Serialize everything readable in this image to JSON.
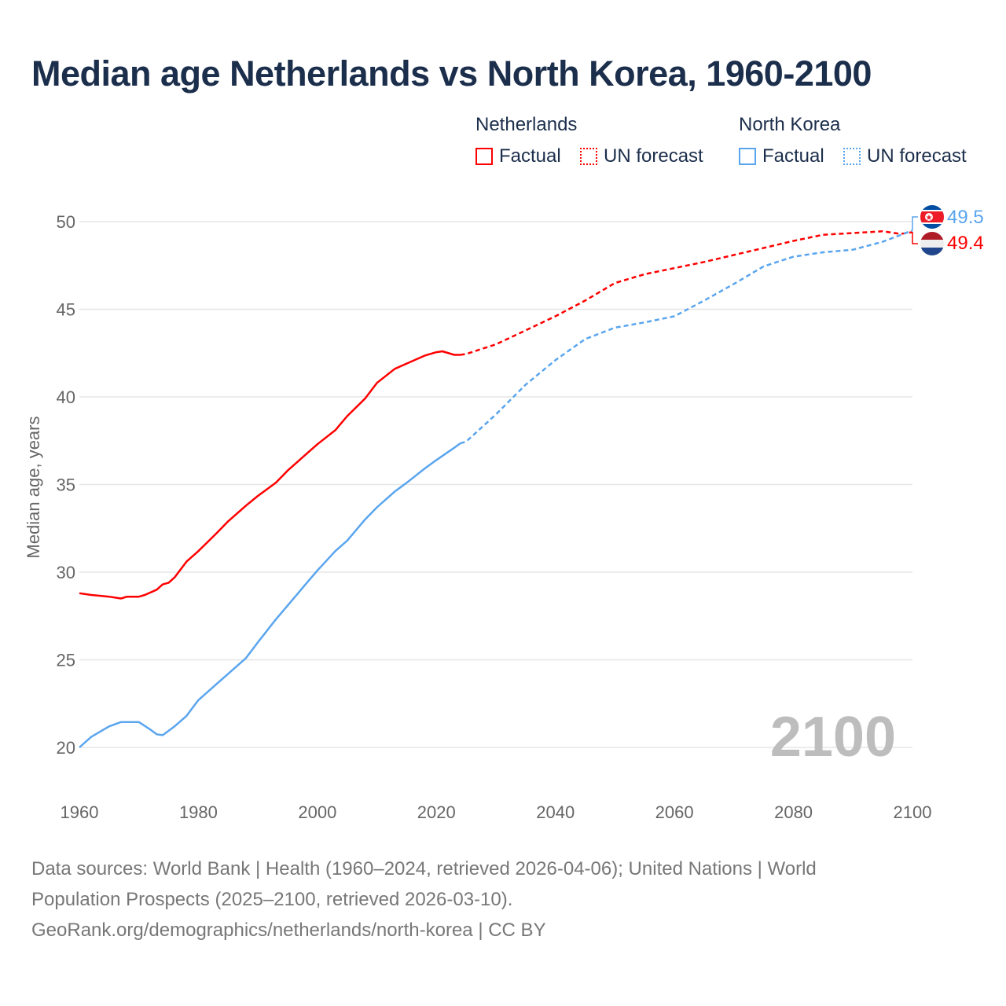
{
  "title": "Median age Netherlands vs North Korea, 1960-2100",
  "legend": {
    "groups": [
      {
        "name": "Netherlands",
        "color": "#ff0000",
        "factual": "Factual",
        "forecast": "UN forecast"
      },
      {
        "name": "North Korea",
        "color": "#5aa5ee",
        "factual": "Factual",
        "forecast": "UN forecast"
      }
    ]
  },
  "year_watermark": "2100",
  "end_labels": {
    "north_korea": "49.5",
    "netherlands": "49.4"
  },
  "footer": {
    "line1": "Data sources: World Bank | Health (1960–2024, retrieved 2026-04-06); United Nations | World",
    "line2": "Population Prospects (2025–2100, retrieved 2026-03-10).",
    "line3": "GeoRank.org/demographics/netherlands/north-korea | CC BY"
  },
  "chart_data": {
    "type": "line",
    "title": "Median age Netherlands vs North Korea, 1960-2100",
    "xlabel": "",
    "ylabel": "Median age, years",
    "xlim": [
      1960,
      2100
    ],
    "ylim": [
      20,
      50
    ],
    "xticks": [
      1960,
      1980,
      2000,
      2020,
      2040,
      2060,
      2080,
      2100
    ],
    "yticks": [
      20,
      25,
      30,
      35,
      40,
      45,
      50
    ],
    "grid": true,
    "legend_position": "top-right",
    "factual_until": 2024,
    "series": [
      {
        "name": "Netherlands",
        "color": "#ff0000",
        "x": [
          1960,
          1962,
          1965,
          1967,
          1968,
          1970,
          1971,
          1973,
          1974,
          1975,
          1976,
          1978,
          1980,
          1983,
          1985,
          1988,
          1990,
          1993,
          1995,
          1998,
          2000,
          2003,
          2005,
          2008,
          2010,
          2013,
          2015,
          2018,
          2020,
          2021,
          2023,
          2024,
          2025,
          2030,
          2035,
          2040,
          2045,
          2050,
          2055,
          2060,
          2065,
          2070,
          2075,
          2080,
          2085,
          2090,
          2095,
          2098,
          2100
        ],
        "values": [
          28.8,
          28.7,
          28.6,
          28.5,
          28.6,
          28.6,
          28.7,
          29.0,
          29.3,
          29.4,
          29.7,
          30.6,
          31.2,
          32.2,
          32.9,
          33.8,
          34.35,
          35.1,
          35.8,
          36.7,
          37.3,
          38.1,
          38.9,
          39.9,
          40.8,
          41.6,
          41.9,
          42.35,
          42.55,
          42.6,
          42.4,
          42.4,
          42.45,
          43.0,
          43.8,
          44.6,
          45.5,
          46.5,
          47.0,
          47.35,
          47.7,
          48.1,
          48.5,
          48.9,
          49.25,
          49.35,
          49.45,
          49.3,
          49.4
        ]
      },
      {
        "name": "North Korea",
        "color": "#5aa5ee",
        "x": [
          1960,
          1962,
          1965,
          1967,
          1970,
          1972,
          1973,
          1974,
          1976,
          1978,
          1980,
          1983,
          1985,
          1988,
          1990,
          1993,
          1995,
          1998,
          2000,
          2003,
          2005,
          2008,
          2010,
          2013,
          2015,
          2018,
          2020,
          2023,
          2024,
          2025,
          2030,
          2035,
          2040,
          2045,
          2050,
          2055,
          2060,
          2065,
          2070,
          2075,
          2080,
          2085,
          2090,
          2095,
          2100
        ],
        "values": [
          20.0,
          20.6,
          21.2,
          21.45,
          21.45,
          21.0,
          20.75,
          20.7,
          21.2,
          21.8,
          22.7,
          23.6,
          24.2,
          25.1,
          26.0,
          27.3,
          28.1,
          29.3,
          30.1,
          31.2,
          31.8,
          33.0,
          33.7,
          34.6,
          35.1,
          35.9,
          36.4,
          37.1,
          37.35,
          37.45,
          39.0,
          40.7,
          42.1,
          43.3,
          43.95,
          44.25,
          44.6,
          45.5,
          46.45,
          47.45,
          48.0,
          48.25,
          48.4,
          48.85,
          49.5
        ]
      }
    ]
  }
}
